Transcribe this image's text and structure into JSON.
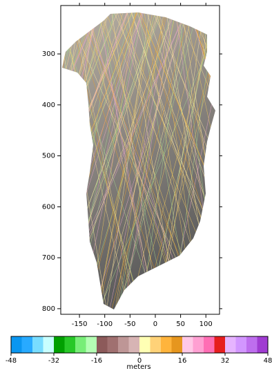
{
  "map": {
    "xlim": [
      -187,
      127
    ],
    "ylim": [
      205,
      811
    ],
    "xticks": [
      -150,
      -100,
      -50,
      0,
      50,
      100
    ],
    "yticks": [
      300,
      400,
      500,
      600,
      700,
      800
    ]
  },
  "colorbar": {
    "lim": [
      -48,
      48
    ],
    "ticks": [
      -48,
      -32,
      -16,
      0,
      16,
      32,
      48
    ],
    "label": "meters",
    "colors": [
      "#0a96f0",
      "#28aaff",
      "#78dcff",
      "#c8ffff",
      "#00a000",
      "#28c828",
      "#78ee78",
      "#b4ffb4",
      "#8c5a5a",
      "#a07070",
      "#be9696",
      "#d7b4b4",
      "#ffffb4",
      "#ffd278",
      "#ffb43c",
      "#e6961e",
      "#ffc8e6",
      "#ffa0d2",
      "#ff6eb4",
      "#e61e1e",
      "#e6b4ff",
      "#d296ff",
      "#be6eee",
      "#a03cd2"
    ]
  }
}
